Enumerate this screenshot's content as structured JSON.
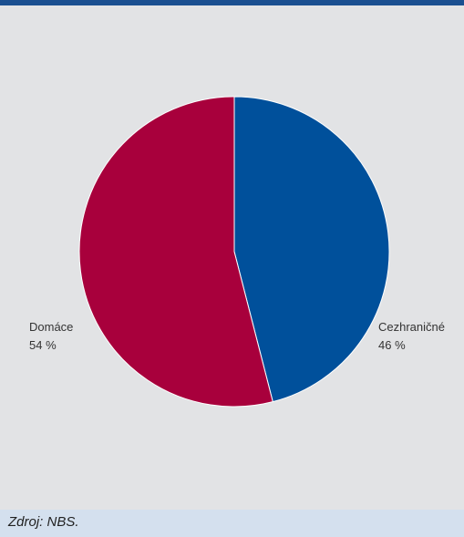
{
  "colors": {
    "header_bar": "#1a4f90",
    "panel_background": "#e2e3e5",
    "source_background": "#d4e0ee"
  },
  "chart_data": {
    "type": "pie",
    "title": "",
    "slices": [
      {
        "label": "Cezhraničné",
        "value": 46,
        "display": "46 %",
        "color": "#00509b"
      },
      {
        "label": "Domáce",
        "value": 54,
        "display": "54 %",
        "color": "#a8003c"
      }
    ],
    "start": "12 o'clock",
    "direction": "clockwise",
    "legend": "none",
    "labels_placement": "outside, beside each slice"
  },
  "source": {
    "text": "Zdroj: NBS."
  }
}
